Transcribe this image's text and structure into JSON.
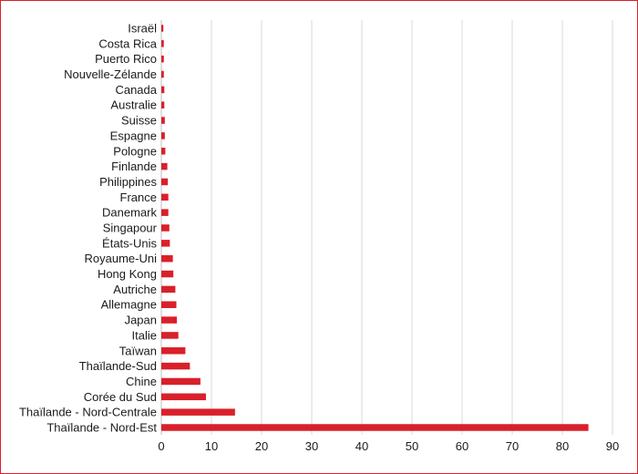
{
  "chart_data": {
    "type": "bar",
    "orientation": "horizontal",
    "categories": [
      "Israël",
      "Costa Rica",
      "Puerto Rico",
      "Nouvelle-Zélande",
      "Canada",
      "Australie",
      "Suisse",
      "Espagne",
      "Pologne",
      "Finlande",
      "Philippines",
      "France",
      "Danemark",
      "Singapour",
      "États-Unis",
      "Royaume-Uni",
      "Hong Kong",
      "Autriche",
      "Allemagne",
      "Japan",
      "Italie",
      "Taïwan",
      "Thaïlande-Sud",
      "Chine",
      "Corée du Sud",
      "Thaïlande - Nord-Centrale",
      "Thaïlande - Nord-Est"
    ],
    "values": [
      0.4,
      0.5,
      0.5,
      0.5,
      0.6,
      0.6,
      0.7,
      0.7,
      0.8,
      1.2,
      1.3,
      1.4,
      1.4,
      1.6,
      1.7,
      2.3,
      2.4,
      2.8,
      3.0,
      3.1,
      3.4,
      4.8,
      5.7,
      7.8,
      8.9,
      14.7,
      85.2
    ],
    "xlim": [
      0,
      90
    ],
    "xticks": [
      "0",
      "10",
      "20",
      "30",
      "40",
      "50",
      "60",
      "70",
      "80",
      "90"
    ],
    "grid": "vertical",
    "bar_color": "#d9202a"
  }
}
